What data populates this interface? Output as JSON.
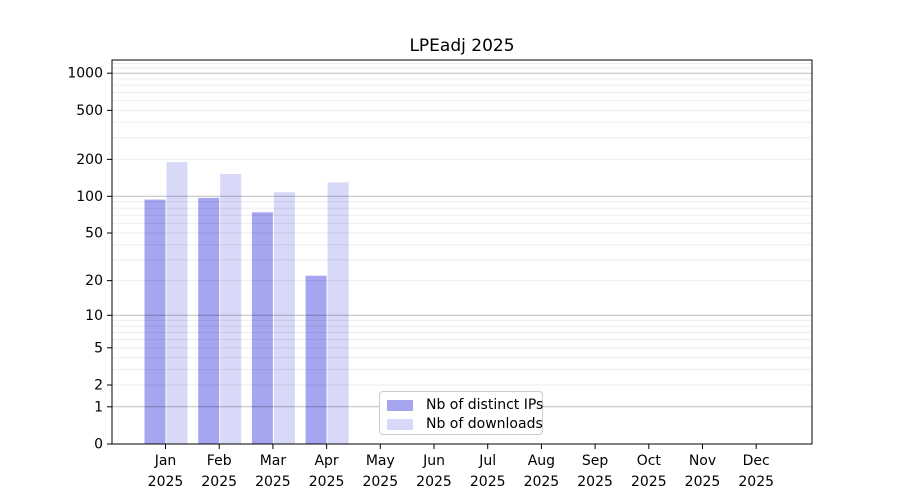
{
  "chart_data": {
    "type": "bar",
    "title": "LPEadj 2025",
    "categories": [
      "Jan",
      "Feb",
      "Mar",
      "Apr",
      "May",
      "Jun",
      "Jul",
      "Aug",
      "Sep",
      "Oct",
      "Nov",
      "Dec"
    ],
    "year_label": "2025",
    "series": [
      {
        "name": "Nb of distinct IPs",
        "color": "#a5a5f0",
        "values": [
          94,
          97,
          74,
          22,
          0,
          0,
          0,
          0,
          0,
          0,
          0,
          0
        ]
      },
      {
        "name": "Nb of downloads",
        "color": "#d8d8f8",
        "values": [
          190,
          152,
          108,
          130,
          0,
          0,
          0,
          0,
          0,
          0,
          0,
          0
        ]
      }
    ],
    "yscale": "log1p",
    "y_ticks": [
      0,
      1,
      2,
      5,
      10,
      20,
      50,
      100,
      200,
      500,
      1000
    ],
    "ylim": [
      0,
      1280
    ],
    "grid": "both",
    "legend_position": "lower center",
    "axis_color": "#000000",
    "major_grid_color": "rgba(0,0,0,0.26)",
    "minor_grid_color": "rgba(0,0,0,0.07)"
  }
}
